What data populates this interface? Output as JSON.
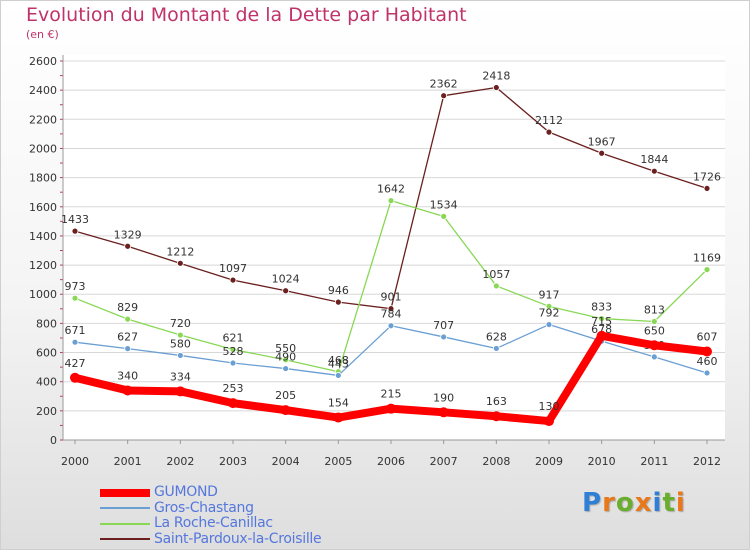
{
  "chart_data": {
    "type": "line",
    "title": "Evolution du Montant de la Dette par Habitant",
    "subtitle": "(en €)",
    "x": [
      "2000",
      "2001",
      "2002",
      "2003",
      "2004",
      "2005",
      "2006",
      "2007",
      "2008",
      "2009",
      "2010",
      "2011",
      "2012"
    ],
    "ylim": [
      0,
      2600
    ],
    "yticks": [
      0,
      200,
      400,
      600,
      800,
      1000,
      1200,
      1400,
      1600,
      1800,
      2000,
      2200,
      2400,
      2600
    ],
    "grid": true,
    "legend_position": "bottom-left",
    "series": [
      {
        "name": "Saint-Pardoux-la-Croisille",
        "color": "#6b1f1f",
        "values": [
          1433,
          1329,
          1212,
          1097,
          1024,
          946,
          901,
          2362,
          2418,
          2112,
          1967,
          1844,
          1726
        ]
      },
      {
        "name": "La Roche-Canillac",
        "color": "#88d855",
        "values": [
          973,
          829,
          720,
          621,
          550,
          468,
          1642,
          1534,
          1057,
          917,
          833,
          813,
          1169
        ]
      },
      {
        "name": "Gros-Chastang",
        "color": "#6a9fd4",
        "values": [
          671,
          627,
          580,
          528,
          490,
          443,
          784,
          707,
          628,
          792,
          678,
          570,
          460
        ]
      },
      {
        "name": "GUMOND",
        "color": "#ff0000",
        "values": [
          427,
          340,
          334,
          253,
          205,
          154,
          215,
          190,
          163,
          130,
          715,
          650,
          607
        ]
      }
    ]
  },
  "legend": {
    "items": [
      {
        "name": "GUMOND",
        "color": "#ff0000"
      },
      {
        "name": "Gros-Chastang",
        "color": "#6a9fd4"
      },
      {
        "name": "La Roche-Canillac",
        "color": "#88d855"
      },
      {
        "name": "Saint-Pardoux-la-Croisille",
        "color": "#6b1f1f"
      }
    ]
  },
  "logo": {
    "letters": [
      {
        "ch": "P",
        "color": "#2f7fd6"
      },
      {
        "ch": "r",
        "color": "#e8791a"
      },
      {
        "ch": "o",
        "color": "#6aae2e"
      },
      {
        "ch": "x",
        "color": "#e8791a"
      },
      {
        "ch": "i",
        "color": "#2f7fd6"
      },
      {
        "ch": "t",
        "color": "#6aae2e"
      },
      {
        "ch": "i",
        "color": "#e8791a"
      }
    ]
  }
}
